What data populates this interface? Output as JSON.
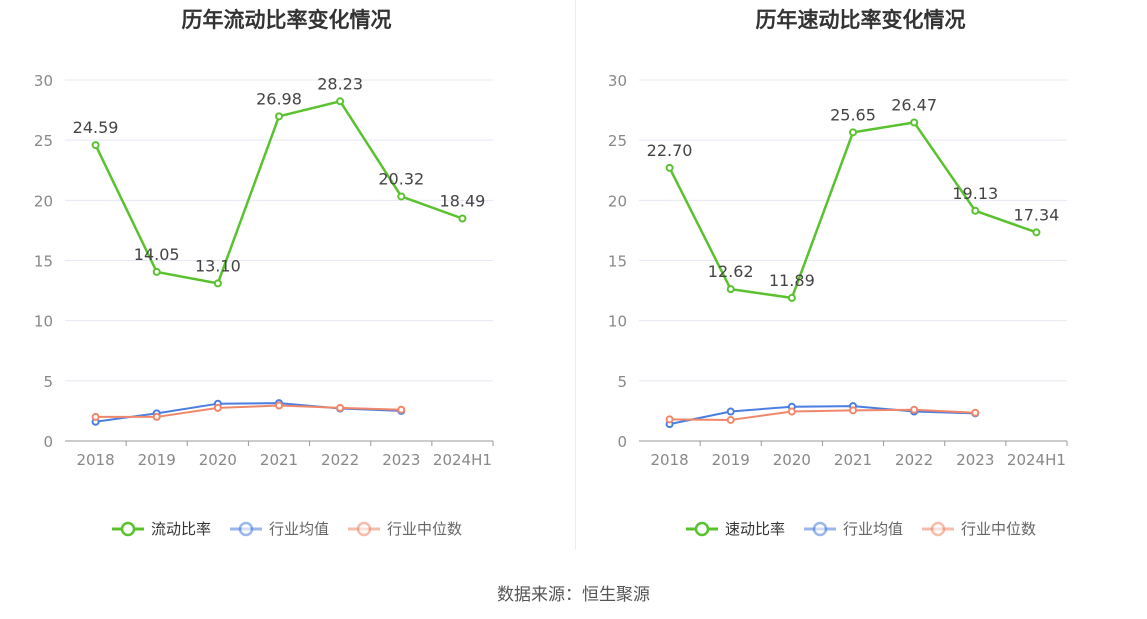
{
  "charts": [
    {
      "title": "历年流动比率变化情况",
      "chart_data": {
        "type": "line",
        "categories": [
          "2018",
          "2019",
          "2020",
          "2021",
          "2022",
          "2023",
          "2024H1"
        ],
        "ylim": [
          0,
          30
        ],
        "yticks": [
          0,
          5,
          10,
          15,
          20,
          25,
          30
        ],
        "grid": true,
        "legend_position": "bottom",
        "series": [
          {
            "name": "流动比率",
            "color": "#5ac12f",
            "values": [
              24.59,
              14.05,
              13.1,
              26.98,
              28.23,
              20.32,
              18.49
            ],
            "labels": [
              "24.59",
              "14.05",
              "13.10",
              "26.98",
              "28.23",
              "20.32",
              "18.49"
            ]
          },
          {
            "name": "行业均值",
            "color": "#4a7ee0",
            "values": [
              1.6,
              2.3,
              3.1,
              3.15,
              2.7,
              2.5,
              null
            ]
          },
          {
            "name": "行业中位数",
            "color": "#f0876a",
            "values": [
              2.0,
              2.0,
              2.75,
              2.95,
              2.75,
              2.6,
              null
            ]
          }
        ]
      }
    },
    {
      "title": "历年速动比率变化情况",
      "chart_data": {
        "type": "line",
        "categories": [
          "2018",
          "2019",
          "2020",
          "2021",
          "2022",
          "2023",
          "2024H1"
        ],
        "ylim": [
          0,
          30
        ],
        "yticks": [
          0,
          5,
          10,
          15,
          20,
          25,
          30
        ],
        "grid": true,
        "legend_position": "bottom",
        "series": [
          {
            "name": "速动比率",
            "color": "#5ac12f",
            "values": [
              22.7,
              12.62,
              11.89,
              25.65,
              26.47,
              19.13,
              17.34
            ],
            "labels": [
              "22.70",
              "12.62",
              "11.89",
              "25.65",
              "26.47",
              "19.13",
              "17.34"
            ]
          },
          {
            "name": "行业均值",
            "color": "#4a7ee0",
            "values": [
              1.4,
              2.45,
              2.85,
              2.9,
              2.45,
              2.3,
              null
            ]
          },
          {
            "name": "行业中位数",
            "color": "#f0876a",
            "values": [
              1.8,
              1.75,
              2.45,
              2.55,
              2.6,
              2.35,
              null
            ]
          }
        ]
      }
    }
  ],
  "source": "数据来源：恒生聚源"
}
